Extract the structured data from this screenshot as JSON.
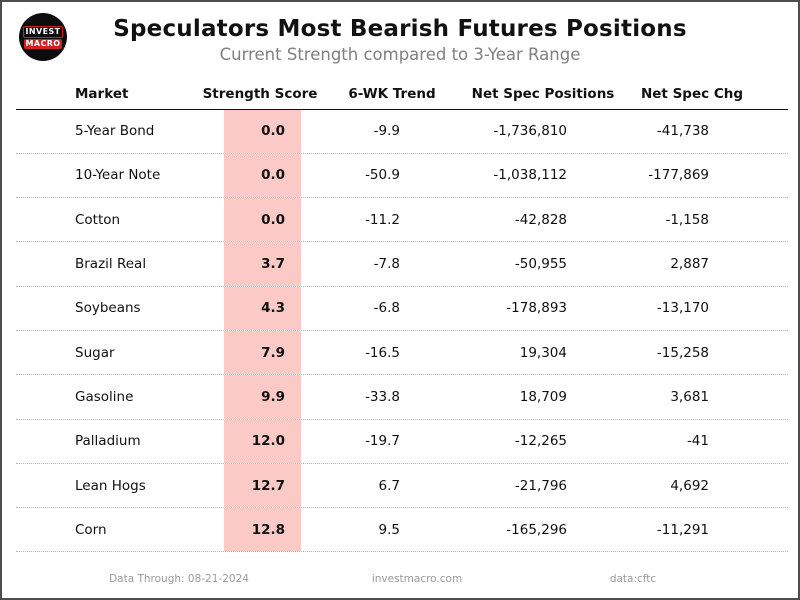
{
  "header": {
    "title": "Speculators Most Bearish Futures Positions",
    "subtitle": "Current Strength compared to 3-Year Range",
    "logo": {
      "line1": "INVEST",
      "line2": "MACRO"
    }
  },
  "table": {
    "columns": [
      "Market",
      "Strength Score",
      "6-WK Trend",
      "Net Spec Positions",
      "Net Spec Chg"
    ],
    "rows": [
      {
        "market": "5-Year Bond",
        "score": "0.0",
        "trend": "-9.9",
        "positions": "-1,736,810",
        "chg": "-41,738"
      },
      {
        "market": "10-Year Note",
        "score": "0.0",
        "trend": "-50.9",
        "positions": "-1,038,112",
        "chg": "-177,869"
      },
      {
        "market": "Cotton",
        "score": "0.0",
        "trend": "-11.2",
        "positions": "-42,828",
        "chg": "-1,158"
      },
      {
        "market": "Brazil Real",
        "score": "3.7",
        "trend": "-7.8",
        "positions": "-50,955",
        "chg": "2,887"
      },
      {
        "market": "Soybeans",
        "score": "4.3",
        "trend": "-6.8",
        "positions": "-178,893",
        "chg": "-13,170"
      },
      {
        "market": "Sugar",
        "score": "7.9",
        "trend": "-16.5",
        "positions": "19,304",
        "chg": "-15,258"
      },
      {
        "market": "Gasoline",
        "score": "9.9",
        "trend": "-33.8",
        "positions": "18,709",
        "chg": "3,681"
      },
      {
        "market": "Palladium",
        "score": "12.0",
        "trend": "-19.7",
        "positions": "-12,265",
        "chg": "-41"
      },
      {
        "market": "Lean Hogs",
        "score": "12.7",
        "trend": "6.7",
        "positions": "-21,796",
        "chg": "4,692"
      },
      {
        "market": "Corn",
        "score": "12.8",
        "trend": "9.5",
        "positions": "-165,296",
        "chg": "-11,291"
      }
    ]
  },
  "footer": {
    "data_through": "Data Through: 08-21-2024",
    "site": "investmacro.com",
    "source": "data:cftc"
  },
  "colors": {
    "score_band": "#fbc9c6",
    "logo_red": "#d02020",
    "subtitle_gray": "#7f7f7f",
    "footer_gray": "#9a9a9a",
    "frame_border": "#4d4d4d"
  },
  "chart_data": {
    "type": "table",
    "title": "Speculators Most Bearish Futures Positions",
    "subtitle": "Current Strength compared to 3-Year Range",
    "columns": [
      "Market",
      "Strength Score",
      "6-WK Trend",
      "Net Spec Positions",
      "Net Spec Chg"
    ],
    "rows": [
      [
        "5-Year Bond",
        0.0,
        -9.9,
        -1736810,
        -41738
      ],
      [
        "10-Year Note",
        0.0,
        -50.9,
        -1038112,
        -177869
      ],
      [
        "Cotton",
        0.0,
        -11.2,
        -42828,
        -1158
      ],
      [
        "Brazil Real",
        3.7,
        -7.8,
        -50955,
        2887
      ],
      [
        "Soybeans",
        4.3,
        -6.8,
        -178893,
        -13170
      ],
      [
        "Sugar",
        7.9,
        -16.5,
        19304,
        -15258
      ],
      [
        "Gasoline",
        9.9,
        -33.8,
        18709,
        3681
      ],
      [
        "Palladium",
        12.0,
        -19.7,
        -12265,
        -41
      ],
      [
        "Lean Hogs",
        12.7,
        6.7,
        -21796,
        4692
      ],
      [
        "Corn",
        12.8,
        9.5,
        -165296,
        -11291
      ]
    ],
    "notes": "Strength Score column highlighted with light red band; data through 08-21-2024; source CFTC via investmacro.com"
  }
}
